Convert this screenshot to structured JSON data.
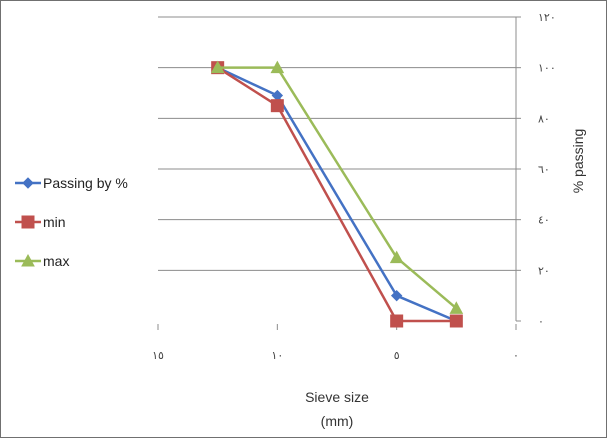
{
  "chart_data": {
    "type": "line",
    "title": "",
    "xlabel_line1": "Sieve size",
    "xlabel_line2": "(mm)",
    "ylabel": "% passing",
    "x_reversed": true,
    "xlim": [
      0,
      15
    ],
    "ylim": [
      0,
      120
    ],
    "x_ticks": [
      15,
      10,
      5,
      0
    ],
    "y_ticks": [
      0,
      20,
      40,
      60,
      80,
      100,
      120
    ],
    "x_tick_labels": [
      "١٥",
      "١٠",
      "٥",
      "٠"
    ],
    "y_tick_labels": [
      "٠",
      "٢٠",
      "٤٠",
      "٦٠",
      "٨٠",
      "١٠٠",
      "١٢٠"
    ],
    "grid": "horizontal",
    "legend_position": "left",
    "series": [
      {
        "name": "Passing by %",
        "color": "#4472C4",
        "marker": "diamond",
        "points": [
          [
            12.5,
            100
          ],
          [
            10,
            89
          ],
          [
            5,
            10
          ],
          [
            2.5,
            0
          ]
        ]
      },
      {
        "name": "min",
        "color": "#C0504D",
        "marker": "square",
        "points": [
          [
            12.5,
            100
          ],
          [
            10,
            85
          ],
          [
            5,
            0
          ],
          [
            2.5,
            0
          ]
        ]
      },
      {
        "name": "max",
        "color": "#9BBB59",
        "marker": "triangle",
        "points": [
          [
            12.5,
            100
          ],
          [
            10,
            100
          ],
          [
            5,
            25
          ],
          [
            2.5,
            5
          ]
        ]
      }
    ]
  }
}
